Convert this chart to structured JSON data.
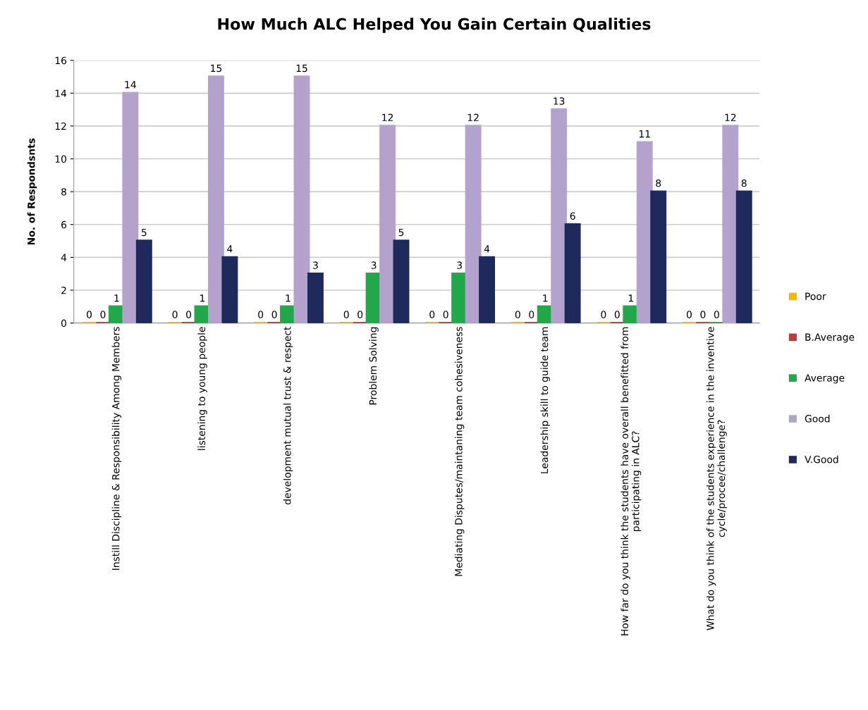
{
  "chart_data": {
    "type": "bar",
    "title": "How Much ALC Helped You Gain Certain Qualities",
    "ylabel": "No. of Respondsnts",
    "categories": [
      "Instill Discipline & Responsibility Among Members",
      "listening to young people",
      "development mutual trust & respect",
      "Problem Solving",
      "Mediating Disputes/maintaning team cohesiveness",
      "Leadership skill to guide team",
      "How far do you think the students have overall benefitted from\nparticipating in ALC?",
      "What do you think of the students experience in the inventive\ncycle/procee/challenge?"
    ],
    "series": [
      {
        "name": "Poor",
        "color": "#f5b800",
        "values": [
          0,
          0,
          0,
          0,
          0,
          0,
          0,
          0
        ]
      },
      {
        "name": "B.Average",
        "color": "#c0393b",
        "values": [
          0,
          0,
          0,
          0,
          0,
          0,
          0,
          0
        ]
      },
      {
        "name": "Average",
        "color": "#22a84a",
        "values": [
          1,
          1,
          1,
          3,
          3,
          1,
          1,
          0
        ]
      },
      {
        "name": "Good",
        "color": "#b3a2cc",
        "values": [
          14,
          15,
          15,
          12,
          12,
          13,
          11,
          12
        ]
      },
      {
        "name": "V.Good",
        "color": "#1f2a5c",
        "values": [
          5,
          4,
          3,
          5,
          4,
          6,
          8,
          8
        ]
      }
    ],
    "ylim": [
      0,
      16
    ],
    "yticks": [
      0,
      2,
      4,
      6,
      8,
      10,
      12,
      14,
      16
    ],
    "grid": "y",
    "legend": "right",
    "data_labels": true
  }
}
